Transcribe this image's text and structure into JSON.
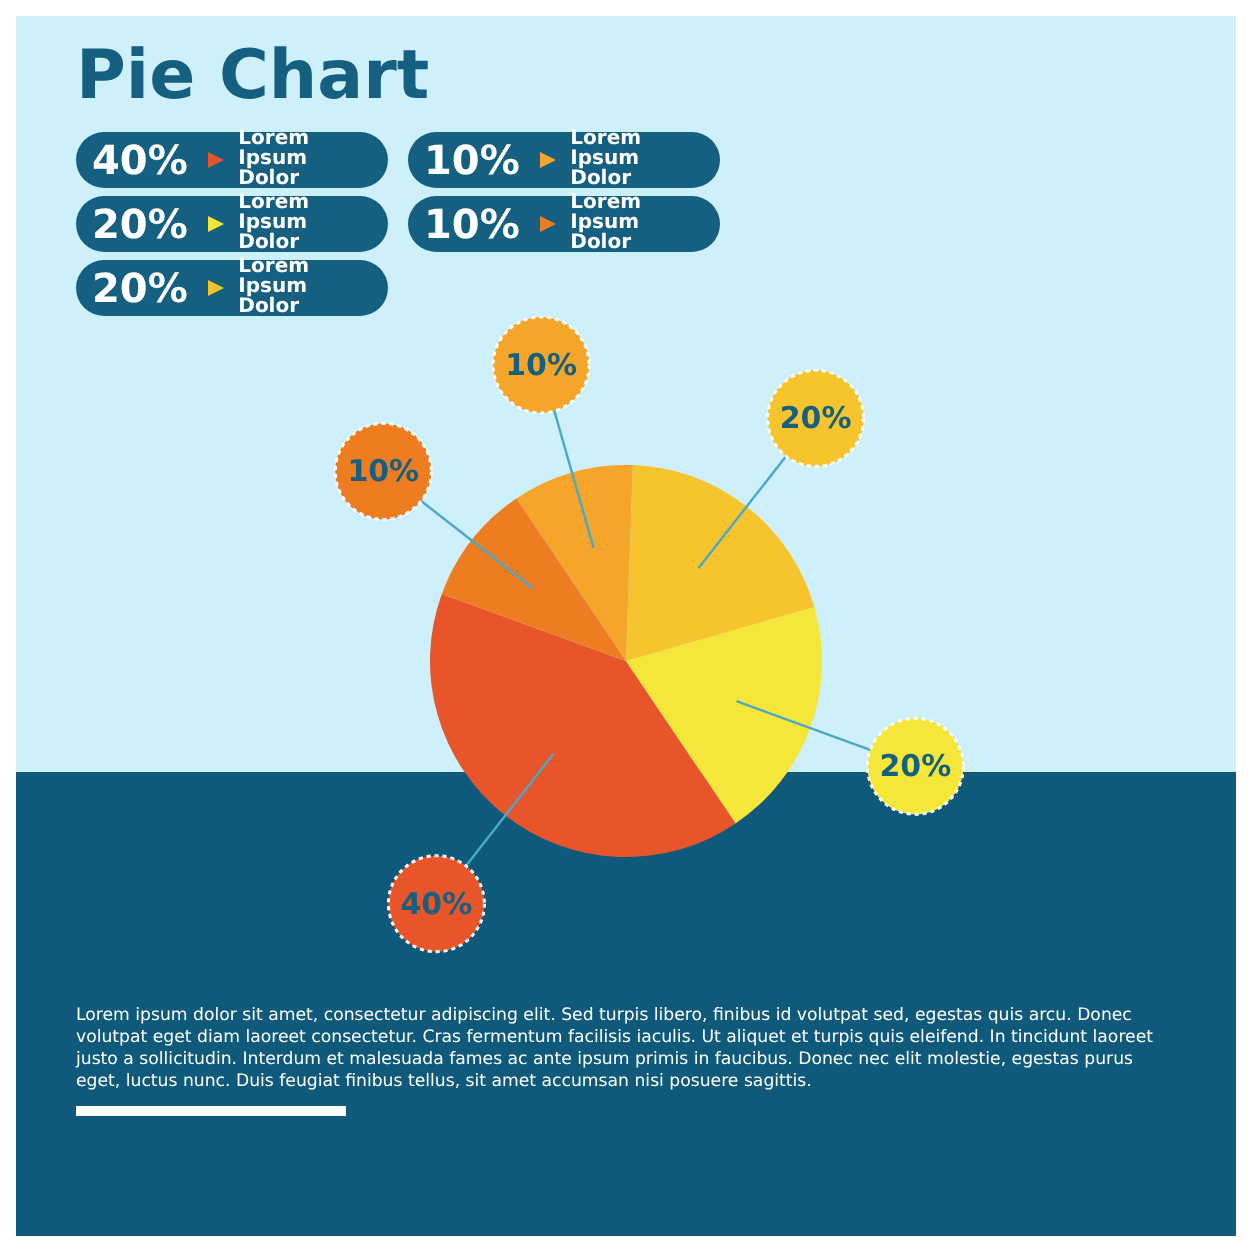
{
  "chart_data": {
    "type": "pie",
    "title": "Pie Chart",
    "categories": [
      "Lorem Ipsum Dolor",
      "Lorem Ipsum Dolor",
      "Lorem Ipsum Dolor",
      "Lorem Ipsum Dolor",
      "Lorem Ipsum Dolor"
    ],
    "values": [
      40,
      20,
      20,
      10,
      10
    ],
    "colors": [
      "#e8552a",
      "#f5e63a",
      "#f6c52e",
      "#f5a52a",
      "#ee7d22"
    ],
    "value_labels": [
      "40%",
      "20%",
      "20%",
      "10%",
      "10%"
    ],
    "legend": "top left",
    "annotations": [
      "Lorem ipsum dolor sit amet, consectetur adipiscing elit. Sed turpis libero, finibus id volutpat sed, egestas quis arcu. Donec volutpat eget diam laoreet consectetur. Cras fermentum facilisis iaculis. Ut aliquet et turpis quis eleifend. In tincidunt laoreet justo a sollicitudin. Interdum et malesuada fames ac ante ipsum primis in faucibus. Donec nec elit molestie, egestas purus eget, luctus nunc. Duis feugiat finibus tellus, sit amet accumsan nisi posuere sagittis."
    ]
  }
}
